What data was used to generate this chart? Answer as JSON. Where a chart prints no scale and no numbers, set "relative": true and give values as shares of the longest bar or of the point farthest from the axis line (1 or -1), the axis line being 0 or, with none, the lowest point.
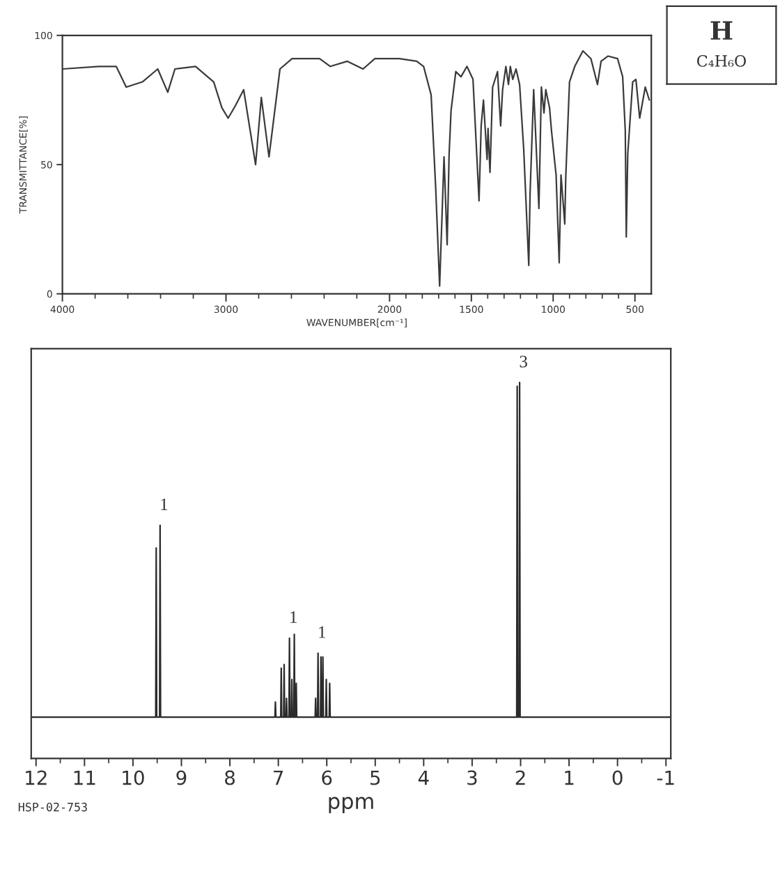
{
  "chart_data": [
    {
      "type": "line",
      "xlabel": "WAVENUMBER[cm⁻¹]",
      "ylabel": "TRANSMITTANCE[%]",
      "color": "#3a3a3a",
      "x": [
        4000,
        3777,
        3671,
        3610,
        3511,
        3417,
        3356,
        3312,
        3186,
        3075,
        3025,
        2987,
        2968,
        2941,
        2892,
        2819,
        2784,
        2737,
        2670,
        2596,
        2428,
        2362,
        2258,
        2162,
        2090,
        1940,
        1834,
        1792,
        1746,
        1718,
        1694,
        1667,
        1648,
        1636,
        1624,
        1595,
        1563,
        1527,
        1490,
        1453,
        1440,
        1426,
        1404,
        1398,
        1386,
        1370,
        1340,
        1321,
        1309,
        1289,
        1273,
        1262,
        1247,
        1227,
        1205,
        1180,
        1149,
        1141,
        1119,
        1087,
        1072,
        1056,
        1045,
        1022,
        1010,
        982,
        963,
        952,
        929,
        923,
        900,
        868,
        818,
        769,
        729,
        707,
        664,
        606,
        575,
        559,
        553,
        544,
        514,
        494,
        471,
        437,
        412
      ],
      "values": [
        87,
        88,
        88,
        80,
        82,
        87,
        78,
        87,
        88,
        82,
        72,
        68,
        70,
        73,
        79,
        50,
        76,
        53,
        87,
        91,
        91,
        88,
        90,
        87,
        91,
        91,
        90,
        88,
        77,
        41,
        3,
        53,
        19,
        54,
        71,
        86,
        84,
        88,
        83,
        36,
        65,
        75,
        52,
        64,
        47,
        80,
        86,
        65,
        79,
        88,
        81,
        88,
        83,
        87,
        81,
        56,
        11,
        39,
        79,
        33,
        80,
        70,
        79,
        72,
        63,
        46,
        12,
        46,
        27,
        45,
        82,
        88,
        94,
        91,
        81,
        90,
        92,
        91,
        84,
        63,
        22,
        54,
        82,
        83,
        68,
        80,
        75
      ],
      "xlim": [
        4000,
        400
      ],
      "xticks": [
        4000,
        {
          "value": 3800,
          "label": null
        },
        {
          "value": 3600,
          "label": null
        },
        {
          "value": 3400,
          "label": null
        },
        {
          "value": 3200,
          "label": null
        },
        3000,
        {
          "value": 2800,
          "label": null
        },
        {
          "value": 2600,
          "label": null
        },
        {
          "value": 2400,
          "label": null
        },
        {
          "value": 2200,
          "label": null
        },
        2000,
        {
          "value": 1900,
          "label": null
        },
        {
          "value": 1800,
          "label": null
        },
        {
          "value": 1700,
          "label": null
        },
        {
          "value": 1600,
          "label": null
        },
        1500,
        {
          "value": 1400,
          "label": null
        },
        {
          "value": 1300,
          "label": null
        },
        {
          "value": 1200,
          "label": null
        },
        {
          "value": 1100,
          "label": null
        },
        1000,
        {
          "value": 900,
          "label": null
        },
        {
          "value": 800,
          "label": null
        },
        {
          "value": 700,
          "label": null
        },
        {
          "value": 600,
          "label": null
        },
        500
      ],
      "ylim": [
        0,
        100
      ],
      "yticks": [
        0,
        50,
        100
      ]
    },
    {
      "type": "other",
      "title": "H",
      "subtitle": "C₄H₆O"
    },
    {
      "type": "line",
      "relative": true,
      "xlabel": "ppm",
      "color": "#2b2b2b",
      "x": [
        12.1,
        9.53,
        9.52,
        9.51,
        9.45,
        9.44,
        9.43,
        7.07,
        7.06,
        7.05,
        6.95,
        6.94,
        6.93,
        6.89,
        6.88,
        6.87,
        6.84,
        6.83,
        6.82,
        6.78,
        6.77,
        6.76,
        6.73,
        6.72,
        6.71,
        6.68,
        6.67,
        6.66,
        6.64,
        6.63,
        6.62,
        6.24,
        6.23,
        6.22,
        6.19,
        6.18,
        6.17,
        6.13,
        6.12,
        6.11,
        6.09,
        6.08,
        6.07,
        6.02,
        6.01,
        6.0,
        5.95,
        5.94,
        5.93,
        2.08,
        2.07,
        2.06,
        2.03,
        2.02,
        2.01,
        -1.1
      ],
      "values": [
        0.11,
        0.11,
        0.56,
        0.11,
        0.11,
        0.62,
        0.11,
        0.11,
        0.15,
        0.11,
        0.11,
        0.24,
        0.11,
        0.11,
        0.25,
        0.11,
        0.11,
        0.16,
        0.11,
        0.11,
        0.32,
        0.11,
        0.11,
        0.21,
        0.11,
        0.11,
        0.33,
        0.11,
        0.11,
        0.2,
        0.11,
        0.11,
        0.16,
        0.11,
        0.11,
        0.28,
        0.11,
        0.11,
        0.27,
        0.11,
        0.11,
        0.27,
        0.11,
        0.11,
        0.21,
        0.11,
        0.11,
        0.2,
        0.11,
        0.11,
        0.99,
        0.11,
        0.11,
        1,
        0.11,
        0.11
      ],
      "xlim": [
        12.1,
        -1.1
      ],
      "xticks": [
        12,
        {
          "value": 11.5,
          "label": null
        },
        11,
        {
          "value": 10.5,
          "label": null
        },
        10,
        {
          "value": 9.5,
          "label": null
        },
        9,
        {
          "value": 8.5,
          "label": null
        },
        8,
        {
          "value": 7.5,
          "label": null
        },
        7,
        {
          "value": 6.5,
          "label": null
        },
        6,
        {
          "value": 5.5,
          "label": null
        },
        5,
        {
          "value": 4.5,
          "label": null
        },
        4,
        {
          "value": 3.5,
          "label": null
        },
        3,
        {
          "value": 2.5,
          "label": null
        },
        2,
        {
          "value": 1.5,
          "label": null
        },
        1,
        {
          "value": 0.5,
          "label": null
        },
        0,
        {
          "value": -0.5,
          "label": null
        },
        -1
      ],
      "annotations": [
        {
          "text": "1",
          "x": 9.44,
          "y": 0.62
        },
        {
          "text": "1",
          "x": 6.77,
          "y": 0.32
        },
        {
          "text": "1",
          "x": 6.18,
          "y": 0.28
        },
        {
          "text": "3",
          "x": 2.02,
          "y": 1
        },
        "HSP-02-753"
      ]
    }
  ]
}
